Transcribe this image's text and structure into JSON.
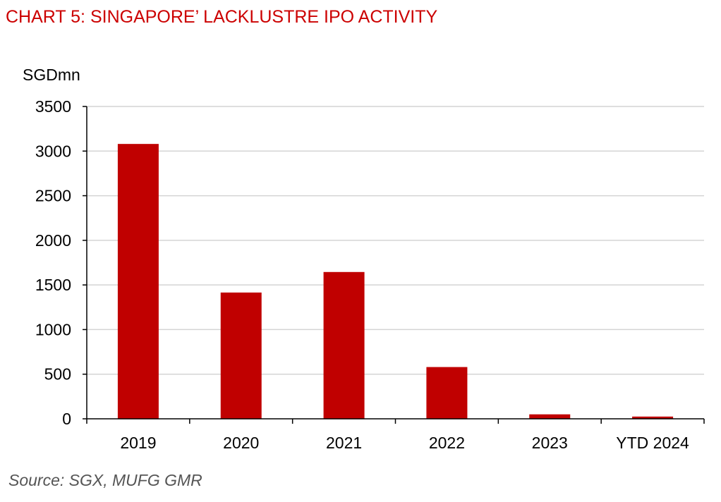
{
  "chart_data": {
    "type": "bar",
    "title": "CHART 5: SINGAPORE’ LACKLUSTRE IPO ACTIVITY",
    "ylabel": "SGDmn",
    "xlabel": "",
    "categories": [
      "2019",
      "2020",
      "2021",
      "2022",
      "2023",
      "YTD 2024"
    ],
    "values": [
      3080,
      1415,
      1645,
      580,
      50,
      25
    ],
    "ylim": [
      0,
      3500
    ],
    "yticks": [
      0,
      500,
      1000,
      1500,
      2000,
      2500,
      3000,
      3500
    ],
    "bar_color": "#c00000",
    "grid": true,
    "legend": "none"
  },
  "source": "Source: SGX, MUFG GMR"
}
